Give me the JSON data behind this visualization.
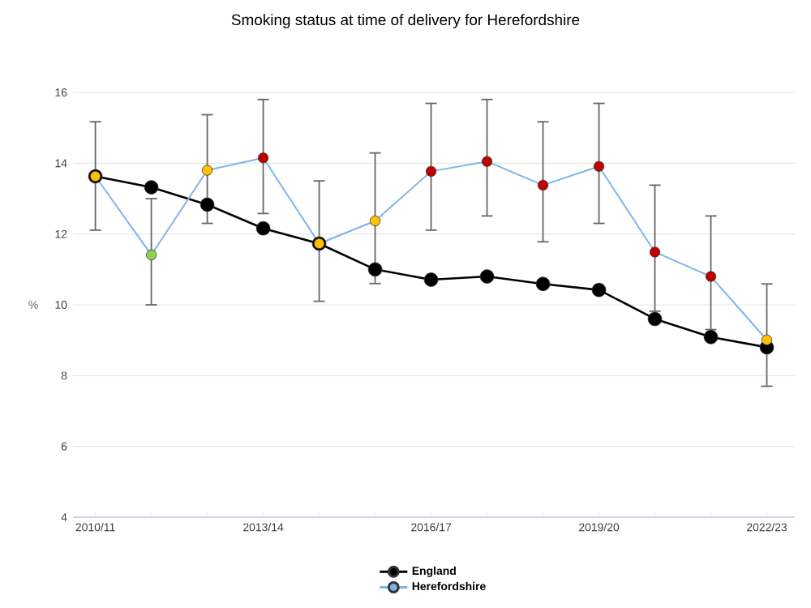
{
  "chart_data": {
    "type": "line",
    "title": "Smoking status at time of delivery for Herefordshire",
    "ylabel": "%",
    "categories": [
      "2010/11",
      null,
      null,
      "2013/14",
      null,
      null,
      "2016/17",
      null,
      null,
      "2019/20",
      null,
      null,
      "2022/23"
    ],
    "ylim": [
      4,
      16
    ],
    "yticks": [
      4,
      6,
      8,
      10,
      12,
      14,
      16
    ],
    "grid": "y",
    "legend": "bottom",
    "marker": "circle",
    "line_style": "solid",
    "series": [
      {
        "name": "England",
        "color": "#000000",
        "values": [
          13.63,
          13.32,
          12.83,
          12.16,
          11.73,
          11.0,
          10.71,
          10.8,
          10.59,
          10.42,
          9.6,
          9.09,
          8.8
        ]
      },
      {
        "name": "Herefordshire",
        "color": "#7cb5ec",
        "values": [
          13.63,
          11.41,
          13.8,
          14.15,
          11.73,
          12.37,
          13.77,
          14.05,
          13.38,
          13.91,
          11.49,
          10.8,
          9.01
        ],
        "colors": [
          "#ffc000",
          "#92d050",
          "#ffc000",
          "#c00000",
          "#ffc000",
          "#ffc000",
          "#c00000",
          "#c00000",
          "#c00000",
          "#c00000",
          "#c00000",
          "#c00000",
          "#ffc000"
        ],
        "errors": [
          [
            12.11,
            15.17
          ],
          [
            10.0,
            13.0
          ],
          [
            12.3,
            15.37
          ],
          [
            12.58,
            15.8
          ],
          [
            10.1,
            13.5
          ],
          [
            10.6,
            14.29
          ],
          [
            12.11,
            15.69
          ],
          [
            12.51,
            15.8
          ],
          [
            11.78,
            15.17
          ],
          [
            12.3,
            15.69
          ],
          [
            9.82,
            13.38
          ],
          [
            9.3,
            12.51
          ],
          [
            7.7,
            10.59
          ]
        ]
      }
    ]
  }
}
